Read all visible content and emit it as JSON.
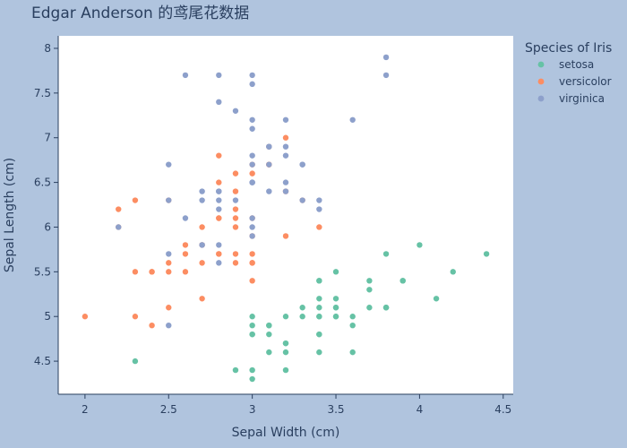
{
  "chart_data": {
    "type": "scatter",
    "title": "Edgar Anderson 的鸢尾花数据",
    "xlabel": "Sepal Width (cm)",
    "ylabel": "Sepal Length (cm)",
    "xlim": [
      1.84,
      4.56
    ],
    "ylim": [
      4.13,
      8.14
    ],
    "xticks": [
      2,
      2.5,
      3,
      3.5,
      4,
      4.5
    ],
    "yticks": [
      4.5,
      5,
      5.5,
      6,
      6.5,
      7,
      7.5,
      8
    ],
    "grid": false,
    "legend": {
      "title": "Species of Iris",
      "placement": "right"
    },
    "series": [
      {
        "name": "setosa",
        "color": "#66c2a5",
        "points": [
          [
            3.5,
            5.1
          ],
          [
            3.0,
            4.9
          ],
          [
            3.2,
            4.7
          ],
          [
            3.1,
            4.6
          ],
          [
            3.6,
            5.0
          ],
          [
            3.9,
            5.4
          ],
          [
            3.4,
            4.6
          ],
          [
            3.4,
            5.0
          ],
          [
            2.9,
            4.4
          ],
          [
            3.1,
            4.9
          ],
          [
            3.7,
            5.4
          ],
          [
            3.4,
            4.8
          ],
          [
            3.0,
            4.8
          ],
          [
            3.0,
            4.3
          ],
          [
            4.0,
            5.8
          ],
          [
            4.4,
            5.7
          ],
          [
            3.9,
            5.4
          ],
          [
            3.5,
            5.1
          ],
          [
            3.8,
            5.7
          ],
          [
            3.8,
            5.1
          ],
          [
            3.4,
            5.4
          ],
          [
            3.7,
            5.1
          ],
          [
            3.6,
            4.6
          ],
          [
            3.3,
            5.1
          ],
          [
            3.4,
            4.8
          ],
          [
            3.0,
            5.0
          ],
          [
            3.4,
            5.0
          ],
          [
            3.5,
            5.2
          ],
          [
            3.4,
            5.2
          ],
          [
            3.2,
            4.7
          ],
          [
            3.1,
            4.8
          ],
          [
            3.4,
            5.4
          ],
          [
            4.1,
            5.2
          ],
          [
            4.2,
            5.5
          ],
          [
            3.1,
            4.9
          ],
          [
            3.2,
            5.0
          ],
          [
            3.5,
            5.5
          ],
          [
            3.6,
            4.9
          ],
          [
            3.0,
            4.4
          ],
          [
            3.4,
            5.1
          ],
          [
            3.5,
            5.0
          ],
          [
            2.3,
            4.5
          ],
          [
            3.2,
            4.4
          ],
          [
            3.5,
            5.0
          ],
          [
            3.8,
            5.1
          ],
          [
            3.0,
            4.8
          ],
          [
            3.8,
            5.1
          ],
          [
            3.2,
            4.6
          ],
          [
            3.7,
            5.3
          ],
          [
            3.3,
            5.0
          ]
        ]
      },
      {
        "name": "versicolor",
        "color": "#fc8d62",
        "points": [
          [
            3.2,
            7.0
          ],
          [
            3.2,
            6.4
          ],
          [
            3.1,
            6.9
          ],
          [
            2.3,
            5.5
          ],
          [
            2.8,
            6.5
          ],
          [
            2.8,
            5.7
          ],
          [
            3.3,
            6.3
          ],
          [
            2.4,
            4.9
          ],
          [
            2.9,
            6.6
          ],
          [
            2.7,
            5.2
          ],
          [
            2.0,
            5.0
          ],
          [
            3.0,
            5.9
          ],
          [
            2.2,
            6.0
          ],
          [
            2.9,
            6.1
          ],
          [
            2.9,
            5.6
          ],
          [
            3.1,
            6.7
          ],
          [
            3.0,
            5.6
          ],
          [
            2.7,
            5.8
          ],
          [
            2.2,
            6.2
          ],
          [
            2.5,
            5.6
          ],
          [
            3.2,
            5.9
          ],
          [
            2.8,
            6.1
          ],
          [
            2.5,
            6.3
          ],
          [
            2.8,
            6.1
          ],
          [
            2.9,
            6.4
          ],
          [
            3.0,
            6.6
          ],
          [
            2.8,
            6.8
          ],
          [
            3.0,
            6.7
          ],
          [
            2.9,
            6.0
          ],
          [
            2.6,
            5.7
          ],
          [
            2.4,
            5.5
          ],
          [
            2.4,
            5.5
          ],
          [
            2.7,
            5.8
          ],
          [
            2.7,
            6.0
          ],
          [
            3.0,
            5.4
          ],
          [
            3.4,
            6.0
          ],
          [
            3.1,
            6.7
          ],
          [
            2.3,
            6.3
          ],
          [
            3.0,
            5.6
          ],
          [
            2.5,
            5.5
          ],
          [
            2.6,
            5.5
          ],
          [
            3.0,
            6.1
          ],
          [
            2.6,
            5.8
          ],
          [
            2.3,
            5.0
          ],
          [
            2.7,
            5.6
          ],
          [
            3.0,
            5.7
          ],
          [
            2.9,
            5.7
          ],
          [
            2.9,
            6.2
          ],
          [
            2.5,
            5.1
          ],
          [
            2.8,
            5.7
          ]
        ]
      },
      {
        "name": "virginica",
        "color": "#8da0cb",
        "points": [
          [
            3.3,
            6.3
          ],
          [
            2.7,
            5.8
          ],
          [
            3.0,
            7.1
          ],
          [
            2.9,
            6.3
          ],
          [
            3.0,
            6.5
          ],
          [
            3.0,
            7.6
          ],
          [
            2.5,
            4.9
          ],
          [
            2.9,
            7.3
          ],
          [
            2.5,
            6.7
          ],
          [
            3.6,
            7.2
          ],
          [
            3.2,
            6.5
          ],
          [
            2.7,
            6.4
          ],
          [
            3.0,
            6.8
          ],
          [
            2.5,
            5.7
          ],
          [
            2.8,
            5.8
          ],
          [
            3.2,
            6.4
          ],
          [
            3.0,
            6.5
          ],
          [
            3.8,
            7.7
          ],
          [
            2.6,
            7.7
          ],
          [
            2.2,
            6.0
          ],
          [
            3.2,
            6.9
          ],
          [
            2.8,
            5.6
          ],
          [
            2.8,
            7.7
          ],
          [
            2.7,
            6.3
          ],
          [
            3.3,
            6.7
          ],
          [
            3.2,
            7.2
          ],
          [
            2.8,
            6.2
          ],
          [
            3.0,
            6.1
          ],
          [
            2.8,
            6.4
          ],
          [
            3.0,
            7.2
          ],
          [
            2.8,
            7.4
          ],
          [
            3.8,
            7.9
          ],
          [
            2.8,
            6.4
          ],
          [
            2.8,
            6.3
          ],
          [
            2.6,
            6.1
          ],
          [
            3.0,
            7.7
          ],
          [
            3.4,
            6.3
          ],
          [
            3.1,
            6.4
          ],
          [
            3.0,
            6.0
          ],
          [
            3.1,
            6.9
          ],
          [
            3.1,
            6.7
          ],
          [
            3.1,
            6.9
          ],
          [
            2.7,
            5.8
          ],
          [
            3.2,
            6.8
          ],
          [
            3.3,
            6.7
          ],
          [
            3.0,
            6.7
          ],
          [
            2.5,
            6.3
          ],
          [
            3.0,
            6.5
          ],
          [
            3.4,
            6.2
          ],
          [
            3.0,
            5.9
          ]
        ]
      }
    ]
  }
}
